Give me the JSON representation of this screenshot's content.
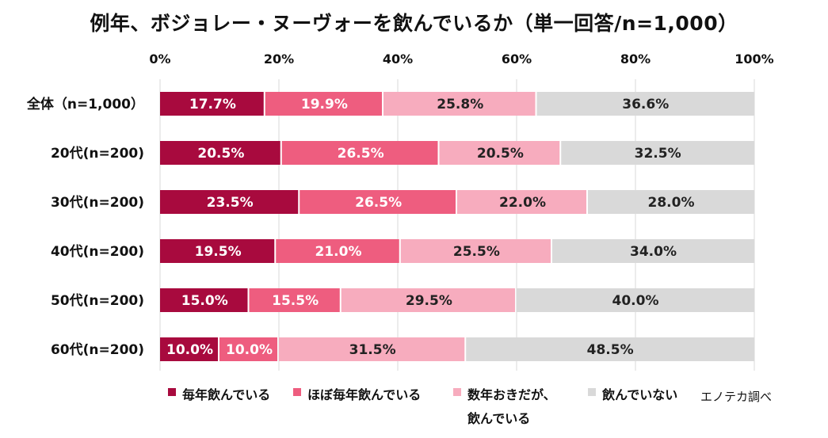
{
  "chart_data": {
    "type": "bar",
    "orientation": "horizontal",
    "stacked": true,
    "title": "例年、ボジョレー・ヌーヴォーを飲んでいるか（単一回答/n=1,000）",
    "x_ticks": [
      "0%",
      "20%",
      "40%",
      "60%",
      "80%",
      "100%"
    ],
    "xlim": [
      0,
      100
    ],
    "grid": true,
    "categories": [
      "全体（n=1,000）",
      "20代(n=200)",
      "30代(n=200)",
      "40代(n=200)",
      "50代(n=200)",
      "60代(n=200)"
    ],
    "series": [
      {
        "name": "毎年飲んでいる",
        "color": "#A80A3E",
        "label_color": "#ffffff",
        "values": [
          17.7,
          20.5,
          23.5,
          19.5,
          15.0,
          10.0
        ],
        "labels": [
          "17.7%",
          "20.5%",
          "23.5%",
          "19.5%",
          "15.0%",
          "10.0%"
        ]
      },
      {
        "name": "ほぼ毎年飲んでいる",
        "color": "#EE5D7F",
        "label_color": "#ffffff",
        "values": [
          19.9,
          26.5,
          26.5,
          21.0,
          15.5,
          10.0
        ],
        "labels": [
          "19.9%",
          "26.5%",
          "26.5%",
          "21.0%",
          "15.5%",
          "10.0%"
        ]
      },
      {
        "name": "数年おきだが、飲んでいる",
        "color": "#F7ACBE",
        "label_color": "#222222",
        "values": [
          25.8,
          20.5,
          22.0,
          25.5,
          29.5,
          31.5
        ],
        "labels": [
          "25.8%",
          "20.5%",
          "22.0%",
          "25.5%",
          "29.5%",
          "31.5%"
        ]
      },
      {
        "name": "飲んでいない",
        "color": "#D9D9D9",
        "label_color": "#222222",
        "values": [
          36.6,
          32.5,
          28.0,
          34.0,
          40.0,
          48.5
        ],
        "labels": [
          "36.6%",
          "32.5%",
          "28.0%",
          "34.0%",
          "40.0%",
          "48.5%"
        ]
      }
    ],
    "legend": {
      "position": "bottom",
      "items": [
        {
          "lines": [
            "毎年飲んでいる"
          ]
        },
        {
          "lines": [
            "ほぼ毎年飲んでいる"
          ]
        },
        {
          "lines": [
            "数年おきだが、",
            "飲んでいる"
          ]
        },
        {
          "lines": [
            "飲んでいない"
          ]
        }
      ]
    },
    "source_note": "エノテカ調べ"
  }
}
